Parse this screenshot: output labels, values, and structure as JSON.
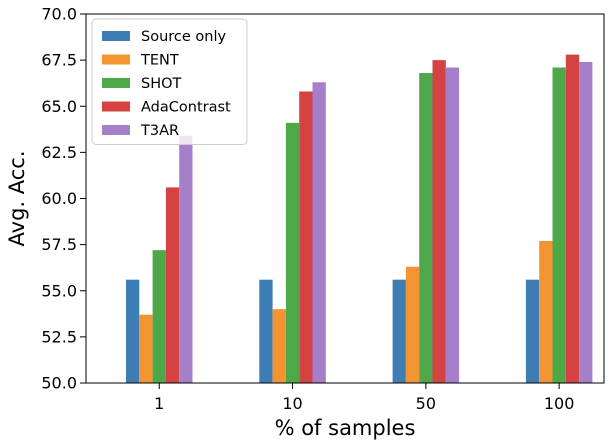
{
  "chart_data": {
    "type": "bar",
    "title": "",
    "xlabel": "% of samples",
    "ylabel": "Avg. Acc.",
    "categories": [
      "1",
      "10",
      "50",
      "100"
    ],
    "ylim": [
      50.0,
      70.0
    ],
    "yticks": [
      "50.0",
      "52.5",
      "55.0",
      "57.5",
      "60.0",
      "62.5",
      "65.0",
      "67.5",
      "70.0"
    ],
    "ytick_values": [
      50.0,
      52.5,
      55.0,
      57.5,
      60.0,
      62.5,
      65.0,
      67.5,
      70.0
    ],
    "grid": false,
    "legend_position": "top-left",
    "series": [
      {
        "name": "Source only",
        "color": "#3d7fb5",
        "values": [
          55.6,
          55.6,
          55.6,
          55.6
        ]
      },
      {
        "name": "TENT",
        "color": "#f39433",
        "values": [
          53.7,
          54.0,
          56.3,
          57.7
        ]
      },
      {
        "name": "SHOT",
        "color": "#4ea84a",
        "values": [
          57.2,
          64.1,
          66.8,
          67.1
        ]
      },
      {
        "name": "AdaContrast",
        "color": "#d44242",
        "values": [
          60.6,
          65.8,
          67.5,
          67.8
        ]
      },
      {
        "name": "T3AR",
        "color": "#a57fc9",
        "values": [
          63.4,
          66.3,
          67.1,
          67.4
        ]
      }
    ]
  }
}
